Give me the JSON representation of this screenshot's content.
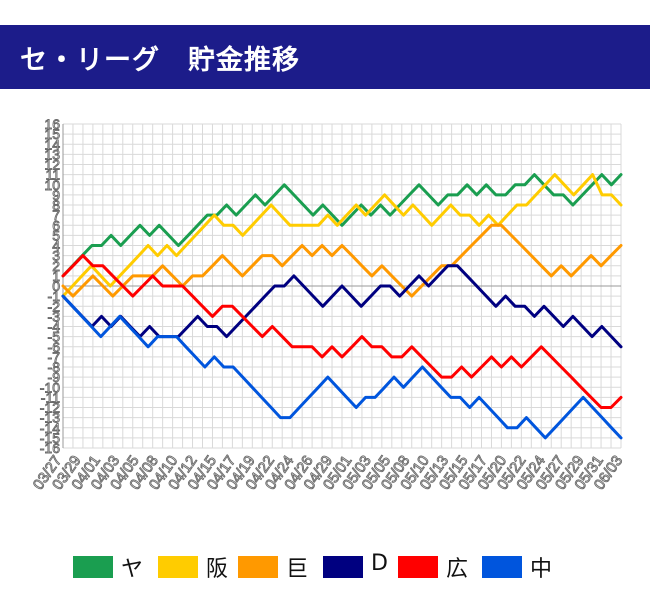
{
  "header": {
    "title": "セ・リーグ　貯金推移"
  },
  "chart_data": {
    "type": "line",
    "title": "セ・リーグ 貯金推移",
    "xlabel": "",
    "ylabel": "",
    "ylim": [
      -16,
      16
    ],
    "yticks": [
      16,
      15,
      14,
      13,
      12,
      11,
      10,
      9,
      8,
      7,
      6,
      5,
      4,
      3,
      2,
      1,
      0,
      -1,
      -2,
      -3,
      -4,
      -5,
      -6,
      -7,
      -8,
      -9,
      -10,
      -11,
      -12,
      -13,
      -14,
      -15,
      -16
    ],
    "grid": true,
    "legend_position": "bottom",
    "x_tick_labels": [
      "03/27",
      "03/29",
      "04/01",
      "04/03",
      "04/05",
      "04/08",
      "04/10",
      "04/12",
      "04/15",
      "04/17",
      "04/19",
      "04/22",
      "04/24",
      "04/26",
      "04/29",
      "05/01",
      "05/03",
      "05/05",
      "05/08",
      "05/10",
      "05/13",
      "05/15",
      "05/17",
      "05/20",
      "05/22",
      "05/24",
      "05/27",
      "05/29",
      "05/31",
      "06/03"
    ],
    "series": [
      {
        "name": "ヤ",
        "color": "#1a9e50",
        "values": [
          1,
          2,
          3,
          4,
          4,
          5,
          4,
          5,
          6,
          5,
          6,
          5,
          4,
          5,
          6,
          7,
          7,
          8,
          7,
          8,
          9,
          8,
          9,
          10,
          9,
          8,
          7,
          8,
          7,
          6,
          7,
          8,
          7,
          8,
          7,
          8,
          9,
          10,
          9,
          8,
          9,
          9,
          10,
          9,
          10,
          9,
          9,
          10,
          10,
          11,
          10,
          9,
          9,
          8,
          9,
          10,
          11,
          10,
          11
        ]
      },
      {
        "name": "阪",
        "color": "#ffcc00",
        "values": [
          -1,
          0,
          1,
          2,
          1,
          0,
          1,
          2,
          3,
          4,
          3,
          4,
          3,
          4,
          5,
          6,
          7,
          6,
          6,
          5,
          6,
          7,
          8,
          7,
          6,
          6,
          6,
          6,
          7,
          6,
          7,
          8,
          7,
          8,
          9,
          8,
          7,
          8,
          7,
          6,
          7,
          8,
          7,
          7,
          6,
          7,
          6,
          7,
          8,
          8,
          9,
          10,
          11,
          10,
          9,
          10,
          11,
          9,
          9,
          8
        ]
      },
      {
        "name": "巨",
        "color": "#ff9900",
        "values": [
          0,
          -1,
          0,
          1,
          0,
          -1,
          0,
          1,
          1,
          1,
          2,
          1,
          0,
          1,
          1,
          2,
          3,
          2,
          1,
          2,
          3,
          3,
          2,
          3,
          4,
          3,
          4,
          3,
          4,
          3,
          2,
          1,
          2,
          1,
          0,
          -1,
          0,
          1,
          2,
          2,
          3,
          4,
          5,
          6,
          6,
          5,
          4,
          3,
          2,
          1,
          2,
          1,
          2,
          3,
          2,
          3,
          4
        ]
      },
      {
        "name": "D",
        "color": "#000080",
        "values": [
          -1,
          -2,
          -3,
          -4,
          -3,
          -4,
          -3,
          -4,
          -5,
          -4,
          -5,
          -5,
          -5,
          -4,
          -3,
          -4,
          -4,
          -5,
          -4,
          -3,
          -2,
          -1,
          0,
          0,
          1,
          0,
          -1,
          -2,
          -1,
          0,
          -1,
          -2,
          -1,
          0,
          0,
          -1,
          0,
          1,
          0,
          1,
          2,
          2,
          1,
          0,
          -1,
          -2,
          -1,
          -2,
          -2,
          -3,
          -2,
          -3,
          -4,
          -3,
          -4,
          -5,
          -4,
          -5,
          -6
        ]
      },
      {
        "name": "広",
        "color": "#ff0000",
        "values": [
          1,
          2,
          3,
          2,
          2,
          1,
          0,
          -1,
          0,
          1,
          0,
          0,
          0,
          -1,
          -2,
          -3,
          -2,
          -2,
          -3,
          -4,
          -5,
          -4,
          -5,
          -6,
          -6,
          -6,
          -7,
          -6,
          -7,
          -6,
          -5,
          -6,
          -6,
          -7,
          -7,
          -6,
          -7,
          -8,
          -9,
          -9,
          -8,
          -9,
          -8,
          -7,
          -8,
          -7,
          -8,
          -7,
          -6,
          -7,
          -8,
          -9,
          -10,
          -11,
          -12,
          -12,
          -11
        ]
      },
      {
        "name": "中",
        "color": "#0055dd",
        "values": [
          -1,
          -2,
          -3,
          -4,
          -5,
          -4,
          -3,
          -4,
          -5,
          -6,
          -5,
          -5,
          -5,
          -6,
          -7,
          -8,
          -7,
          -8,
          -8,
          -9,
          -10,
          -11,
          -12,
          -13,
          -13,
          -12,
          -11,
          -10,
          -9,
          -10,
          -11,
          -12,
          -11,
          -11,
          -10,
          -9,
          -10,
          -9,
          -8,
          -9,
          -10,
          -11,
          -11,
          -12,
          -11,
          -12,
          -13,
          -14,
          -14,
          -13,
          -14,
          -15,
          -14,
          -13,
          -12,
          -11,
          -12,
          -13,
          -14,
          -15
        ]
      }
    ]
  }
}
